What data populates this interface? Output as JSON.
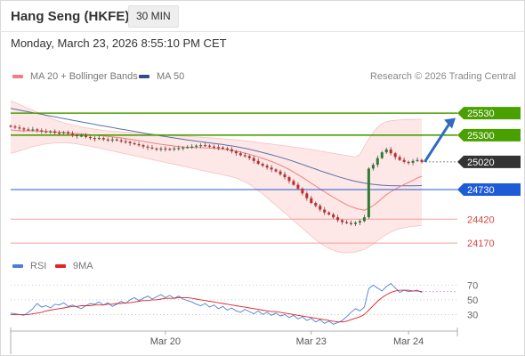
{
  "header": {
    "title": "Hang Seng (HKFE)",
    "timeframe": "30 MIN"
  },
  "datetime": "Monday, March 23, 2026 8:55:10 PM CET",
  "legend": {
    "ma20_label": "MA 20 + Bollinger Bands",
    "ma50_label": "MA 50",
    "copyright": "Research © 2026 Trading Central",
    "rsi_label": "RSI",
    "rsi_ma_label": "9MA"
  },
  "colors": {
    "up_candle": "#2e7d32",
    "down_candle": "#c62828",
    "resistance": "#4aa000",
    "pivot": "#1e5bd7",
    "support": "#f2a09c",
    "ma20": "#f08080",
    "ma50": "#5b6fa8",
    "bollinger_fill": "#fde3e3",
    "rsi_line": "#4a7fd9",
    "rsi_ma_line": "#e02424",
    "last_price_badge": "#333333",
    "arrow": "#2d6cc0"
  },
  "chart_data": [
    {
      "type": "candlestick",
      "title": "Hang Seng (HKFE) 30 MIN",
      "x_labels": [
        "Mar 20",
        "Mar 23",
        "Mar 24"
      ],
      "ylim": [
        24050,
        25820
      ],
      "last_price": 25020,
      "levels": [
        {
          "value": 25530,
          "label": "25530",
          "kind": "resistance"
        },
        {
          "value": 25300,
          "label": "25300",
          "kind": "resistance"
        },
        {
          "value": 25020,
          "label": "25020",
          "kind": "last"
        },
        {
          "value": 24730,
          "label": "24730",
          "kind": "pivot"
        },
        {
          "value": 24420,
          "label": "24420",
          "kind": "support"
        },
        {
          "value": 24170,
          "label": "24170",
          "kind": "support"
        }
      ],
      "close_series": [
        25390,
        25380,
        25370,
        25360,
        25355,
        25360,
        25350,
        25340,
        25330,
        25340,
        25325,
        25320,
        25330,
        25315,
        25300,
        25290,
        25295,
        25280,
        25270,
        25260,
        25270,
        25255,
        25250,
        25255,
        25245,
        25235,
        25230,
        25215,
        25205,
        25195,
        25180,
        25170,
        25160,
        25150,
        25160,
        25155,
        25150,
        25160,
        25165,
        25170,
        25175,
        25180,
        25190,
        25195,
        25190,
        25180,
        25175,
        25170,
        25160,
        25150,
        25130,
        25110,
        25090,
        25080,
        25060,
        25030,
        25000,
        24980,
        24960,
        24940,
        24920,
        24890,
        24860,
        24820,
        24780,
        24740,
        24690,
        24640,
        24590,
        24560,
        24520,
        24490,
        24470,
        24440,
        24410,
        24390,
        24380,
        24370,
        24385,
        24400,
        24440,
        24950,
        24990,
        25060,
        25120,
        25150,
        25110,
        25070,
        25040,
        25020,
        25010,
        25030,
        25040,
        25020
      ],
      "ma20": [
        25355,
        25350,
        25345,
        25345,
        25345,
        25344,
        25342,
        25340,
        25338,
        25335,
        25332,
        25330,
        25327,
        25324,
        25320,
        25316,
        25313,
        25308,
        25304,
        25300,
        25296,
        25291,
        25286,
        25281,
        25276,
        25270,
        25264,
        25257,
        25250,
        25243,
        25235,
        25227,
        25219,
        25211,
        25204,
        25198,
        25192,
        25186,
        25180,
        25176,
        25173,
        25171,
        25170,
        25169,
        25167,
        25165,
        25162,
        25158,
        25153,
        25147,
        25140,
        25132,
        25122,
        25111,
        25099,
        25086,
        25072,
        25057,
        25041,
        25024,
        25006,
        24986,
        24964,
        24940,
        24914,
        24887,
        24858,
        24828,
        24797,
        24767,
        24737,
        24707,
        24678,
        24650,
        24623,
        24597,
        24573,
        24551,
        24535,
        24522,
        24513,
        24534,
        24562,
        24597,
        24637,
        24677,
        24707,
        24735,
        24760,
        24783,
        24804,
        24827,
        24851,
        24870
      ],
      "ma50": [
        25580,
        25571,
        25562,
        25553,
        25544,
        25535,
        25527,
        25518,
        25509,
        25500,
        25491,
        25482,
        25473,
        25465,
        25456,
        25447,
        25438,
        25430,
        25421,
        25413,
        25404,
        25396,
        25388,
        25379,
        25371,
        25363,
        25355,
        25347,
        25339,
        25331,
        25323,
        25315,
        25307,
        25300,
        25292,
        25285,
        25277,
        25270,
        25263,
        25256,
        25249,
        25243,
        25237,
        25231,
        25225,
        25219,
        25213,
        25207,
        25201,
        25194,
        25187,
        25179,
        25171,
        25162,
        25152,
        25141,
        25130,
        25118,
        25106,
        25094,
        25081,
        25068,
        25054,
        25040,
        25025,
        25009,
        24993,
        24977,
        24960,
        24944,
        24928,
        24912,
        24897,
        24882,
        24867,
        24853,
        24840,
        24828,
        24817,
        24807,
        24798,
        24791,
        24785,
        24780,
        24776,
        24773,
        24771,
        24770,
        24769,
        24769,
        24769,
        24770,
        24771,
        24772
      ],
      "bollinger_upper": [
        25660,
        25640,
        25620,
        25600,
        25580,
        25560,
        25540,
        25520,
        25500,
        25480,
        25460,
        25445,
        25430,
        25418,
        25406,
        25396,
        25386,
        25377,
        25370,
        25362,
        25355,
        25350,
        25345,
        25341,
        25338,
        25334,
        25331,
        25328,
        25325,
        25322,
        25318,
        25314,
        25311,
        25308,
        25305,
        25302,
        25299,
        25296,
        25293,
        25290,
        25287,
        25284,
        25281,
        25278,
        25275,
        25272,
        25269,
        25266,
        25262,
        25258,
        25254,
        25250,
        25245,
        25240,
        25235,
        25230,
        25224,
        25218,
        25212,
        25206,
        25200,
        25194,
        25188,
        25182,
        25176,
        25170,
        25164,
        25158,
        25150,
        25142,
        25134,
        25126,
        25118,
        25110,
        25102,
        25094,
        25086,
        25078,
        25070,
        25100,
        25180,
        25260,
        25330,
        25380,
        25420,
        25440,
        25450,
        25455,
        25460,
        25462,
        25463,
        25464,
        25465,
        25465
      ],
      "bollinger_lower": [
        25110,
        25120,
        25135,
        25150,
        25165,
        25180,
        25190,
        25200,
        25208,
        25214,
        25218,
        25220,
        25220,
        25218,
        25214,
        25208,
        25200,
        25192,
        25183,
        25174,
        25164,
        25154,
        25144,
        25134,
        25124,
        25114,
        25104,
        25094,
        25084,
        25074,
        25064,
        25054,
        25044,
        25034,
        25024,
        25014,
        25004,
        24994,
        24984,
        24974,
        24964,
        24954,
        24944,
        24934,
        24924,
        24914,
        24904,
        24894,
        24884,
        24874,
        24864,
        24850,
        24830,
        24810,
        24785,
        24755,
        24720,
        24685,
        24645,
        24605,
        24565,
        24525,
        24485,
        24445,
        24405,
        24365,
        24325,
        24285,
        24245,
        24205,
        24170,
        24140,
        24115,
        24095,
        24080,
        24070,
        24068,
        24070,
        24078,
        24090,
        24105,
        24130,
        24160,
        24195,
        24230,
        24260,
        24285,
        24305,
        24320,
        24330,
        24340,
        24345,
        24350,
        24355
      ]
    },
    {
      "type": "line",
      "title": "RSI",
      "x_labels": [
        "Mar 20",
        "Mar 23",
        "Mar 24"
      ],
      "y_ticks": [
        70,
        50,
        30
      ],
      "ylim": [
        10,
        80
      ],
      "series": [
        {
          "name": "RSI",
          "values": [
            32,
            31,
            30,
            29,
            33,
            38,
            45,
            40,
            42,
            39,
            44,
            43,
            46,
            41,
            43,
            40,
            38,
            42,
            45,
            44,
            47,
            43,
            46,
            41,
            44,
            48,
            45,
            50,
            53,
            49,
            52,
            55,
            51,
            54,
            57,
            53,
            56,
            52,
            55,
            51,
            49,
            47,
            44,
            42,
            45,
            40,
            43,
            38,
            41,
            36,
            39,
            35,
            33,
            37,
            34,
            31,
            35,
            30,
            33,
            29,
            32,
            28,
            30,
            26,
            29,
            24,
            27,
            22,
            25,
            20,
            23,
            18,
            21,
            17,
            19,
            22,
            27,
            33,
            38,
            35,
            40,
            65,
            70,
            66,
            62,
            68,
            72,
            66,
            60,
            63,
            61,
            62,
            63,
            60
          ]
        },
        {
          "name": "9MA",
          "values": [
            30,
            30,
            30,
            30,
            30,
            31,
            32,
            33,
            35,
            36,
            37,
            38,
            39,
            40,
            41,
            41,
            42,
            42,
            42,
            43,
            43,
            43,
            44,
            44,
            45,
            45,
            46,
            46,
            47,
            48,
            49,
            49,
            50,
            50,
            51,
            52,
            52,
            52,
            53,
            53,
            53,
            52,
            51,
            50,
            49,
            48,
            47,
            46,
            45,
            44,
            43,
            42,
            41,
            40,
            39,
            38,
            37,
            36,
            35,
            34,
            34,
            33,
            32,
            31,
            30,
            29,
            28,
            27,
            26,
            25,
            24,
            23,
            22,
            21,
            20,
            20,
            21,
            23,
            25,
            27,
            30,
            36,
            42,
            48,
            53,
            57,
            60,
            62,
            63,
            63,
            63,
            62,
            62,
            61
          ]
        }
      ]
    }
  ]
}
